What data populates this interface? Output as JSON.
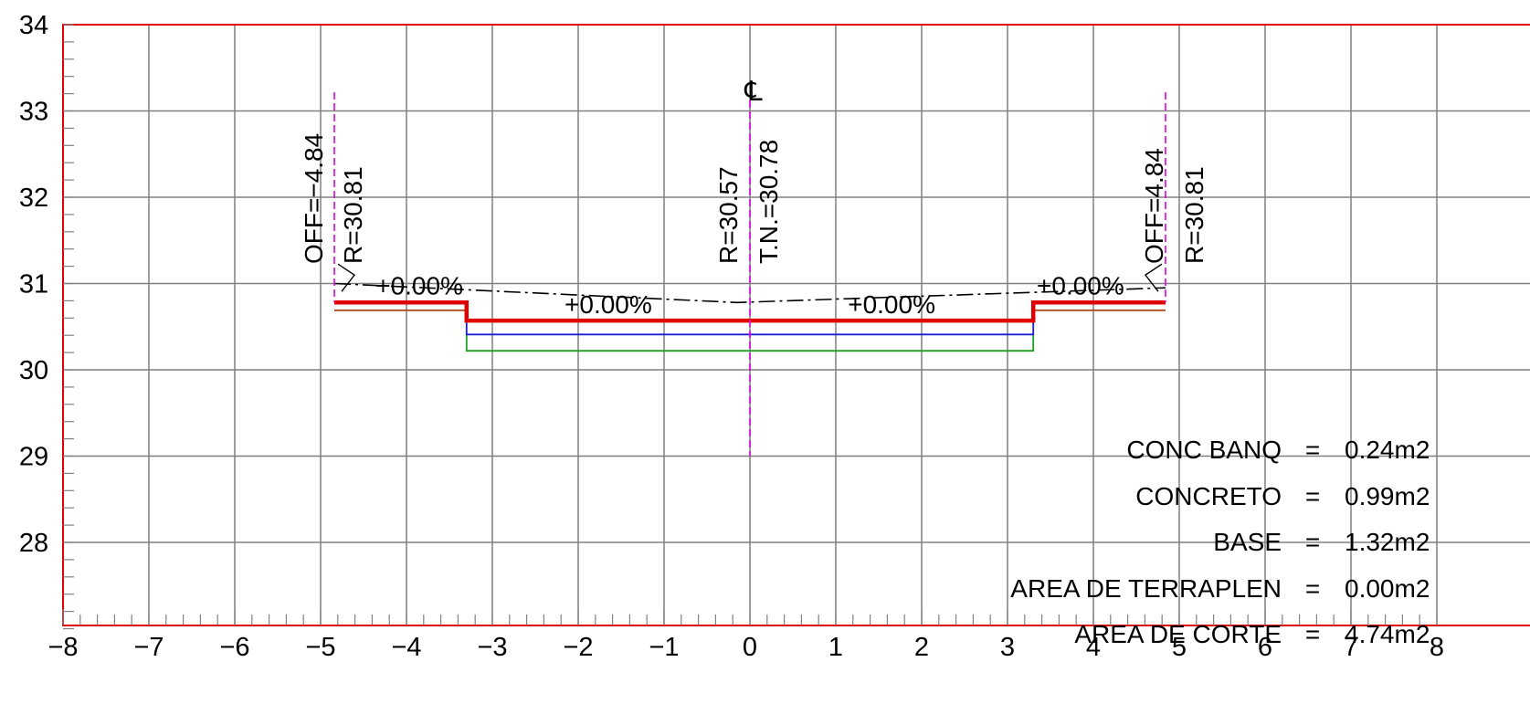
{
  "section": {
    "x_range": [
      -8,
      8
    ],
    "y_range": [
      27,
      34
    ],
    "x_ticks": [
      "−8",
      "−7",
      "−6",
      "−5",
      "−4",
      "−3",
      "−2",
      "−1",
      "0",
      "1",
      "2",
      "3",
      "4",
      "5",
      "6",
      "7",
      "8"
    ],
    "y_ticks": [
      "34",
      "33",
      "32",
      "31",
      "30",
      "29",
      "28"
    ],
    "grid": true,
    "centerline_symbol": "℄",
    "left_offset": {
      "x": -4.84,
      "off_label": "OFF=−4.84",
      "rasante_label": "R=30.81"
    },
    "right_offset": {
      "x": 4.84,
      "off_label": "OFF=4.84",
      "rasante_label": "R=30.81"
    },
    "center": {
      "rasante_label": "R=30.57",
      "terrain_label": "T.N.=30.78"
    },
    "slopes": [
      {
        "label": "+0.00%",
        "x": -3.85,
        "y": 30.98
      },
      {
        "label": "+0.00%",
        "x": -1.65,
        "y": 30.76
      },
      {
        "label": "+0.00%",
        "x": 1.65,
        "y": 30.76
      },
      {
        "label": "+0.00%",
        "x": 3.85,
        "y": 30.98
      }
    ],
    "profiles": {
      "subrasante": {
        "color": "#e00000",
        "points": [
          [
            -4.84,
            30.78
          ],
          [
            -3.3,
            30.78
          ],
          [
            -3.3,
            30.57
          ],
          [
            3.3,
            30.57
          ],
          [
            3.3,
            30.78
          ],
          [
            4.84,
            30.78
          ]
        ]
      },
      "banqueta_base": {
        "color": "#b24a1e",
        "points": [
          [
            -4.84,
            30.69
          ],
          [
            -3.3,
            30.69
          ]
        ]
      },
      "banqueta_base_right": {
        "color": "#b24a1e",
        "points": [
          [
            3.3,
            30.69
          ],
          [
            4.84,
            30.69
          ]
        ]
      },
      "concreto_bottom": {
        "color": "#2020d0",
        "points": [
          [
            -3.3,
            30.57
          ],
          [
            -3.3,
            30.41
          ],
          [
            3.3,
            30.41
          ],
          [
            3.3,
            30.57
          ]
        ]
      },
      "base_bottom": {
        "color": "#20a020",
        "points": [
          [
            -3.3,
            30.41
          ],
          [
            -3.3,
            30.22
          ],
          [
            3.3,
            30.22
          ],
          [
            3.3,
            30.41
          ]
        ]
      },
      "terreno_natural": {
        "color": "#000000",
        "points": [
          [
            -4.84,
            31.0
          ],
          [
            -0.15,
            30.78
          ],
          [
            4.84,
            30.95
          ]
        ]
      }
    },
    "quantities": [
      {
        "name": "CONC BANQ",
        "eq": "=",
        "value": "0.24m2"
      },
      {
        "name": "CONCRETO",
        "eq": "=",
        "value": "0.99m2"
      },
      {
        "name": "BASE",
        "eq": "=",
        "value": "1.32m2"
      },
      {
        "name": "AREA DE TERRAPLEN",
        "eq": "=",
        "value": "0.00m2"
      },
      {
        "name": "AREA DE CORTE",
        "eq": "=",
        "value": "4.74m2"
      }
    ],
    "colors": {
      "frame": "#e00000",
      "grid": "#808080",
      "offset_line": "#e000e0"
    }
  }
}
